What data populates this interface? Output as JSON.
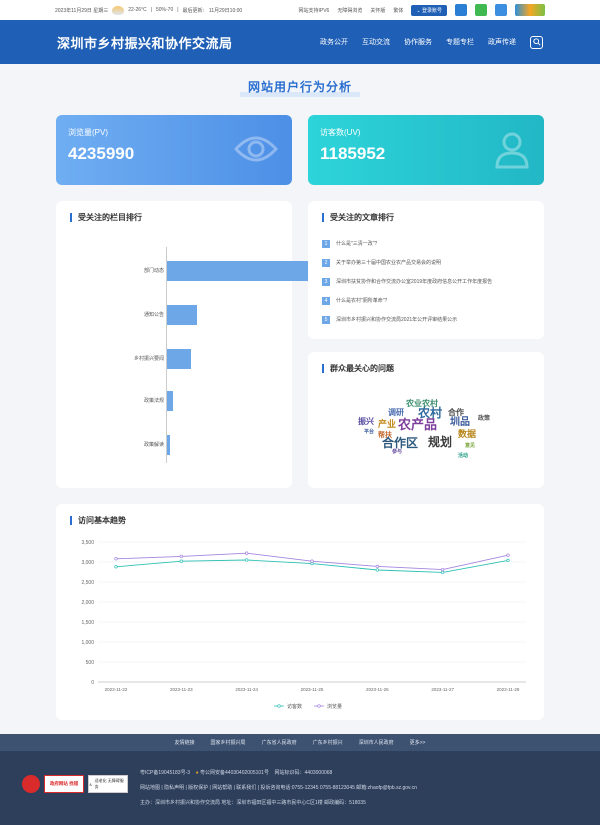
{
  "topbar": {
    "date": "2023年11月29日 星期三",
    "temp": "22-26°C",
    "humidity": "50%-70",
    "updated": "最后更新： 11月29日10:00",
    "links": [
      "网站支持IPV6",
      "无障碍浏览",
      "关怀版",
      "繁体"
    ],
    "login_label": "登录账号",
    "apps": [
      {
        "name": "mobile-icon",
        "color": "#2a7fd4"
      },
      {
        "name": "wechat-icon",
        "color": "#3fb950"
      },
      {
        "name": "weibo-icon",
        "color": "#3c8ee0"
      },
      {
        "name": "miniapp-icon",
        "color": "#2c9fd6"
      }
    ]
  },
  "header": {
    "site_title": "深圳市乡村振兴和协作交流局",
    "nav": [
      "政务公开",
      "互动交流",
      "协作服务",
      "专题专栏",
      "政声传递"
    ]
  },
  "page_title": "网站用户行为分析",
  "stats": {
    "pv": {
      "label": "浏览量(PV)",
      "value": "4235990"
    },
    "uv": {
      "label": "访客数(UV)",
      "value": "1185952"
    }
  },
  "column_rank": {
    "title": "受关注的栏目排行",
    "items": [
      {
        "label": "部门动态",
        "value": 100
      },
      {
        "label": "通知公告",
        "value": 20
      },
      {
        "label": "乡村振兴要闻",
        "value": 16
      },
      {
        "label": "政策法规",
        "value": 4
      },
      {
        "label": "政策解读",
        "value": 2
      }
    ]
  },
  "article_rank": {
    "title": "受关注的文章排行",
    "items": [
      {
        "num": "1",
        "text": "什么是\"三清一改\"?"
      },
      {
        "num": "2",
        "text": "关于举办第三十届中国农业农产品交易会的说明"
      },
      {
        "num": "3",
        "text": "深圳市扶贫协作和合作交流办公室2019年度政府信息公开工作年度报告"
      },
      {
        "num": "4",
        "text": "什么是农村\"厕所革命\"?"
      },
      {
        "num": "5",
        "text": "深圳市乡村振兴和协作交流局2021年公开评审结果公示"
      }
    ]
  },
  "word_cloud": {
    "title": "群众最关心的问题",
    "words": [
      {
        "text": "农业农村",
        "color": "#3b8d6e",
        "size": 8
      },
      {
        "text": "调研",
        "color": "#4d6fb0",
        "size": 8
      },
      {
        "text": "农村",
        "color": "#2f6a9e",
        "size": 12
      },
      {
        "text": "合作",
        "color": "#4a4a4a",
        "size": 8
      },
      {
        "text": "振兴",
        "color": "#5b4fa3",
        "size": 8
      },
      {
        "text": "产业",
        "color": "#c28a1e",
        "size": 9
      },
      {
        "text": "农产品",
        "color": "#7e3f9c",
        "size": 13
      },
      {
        "text": "圳品",
        "color": "#3a5a9b",
        "size": 10
      },
      {
        "text": "政策",
        "color": "#555555",
        "size": 6
      },
      {
        "text": "平台",
        "color": "#3a5a9b",
        "size": 5
      },
      {
        "text": "帮扶",
        "color": "#c2662a",
        "size": 7
      },
      {
        "text": "数据",
        "color": "#b8861a",
        "size": 9
      },
      {
        "text": "合作区",
        "color": "#2e5a7e",
        "size": 12
      },
      {
        "text": "规划",
        "color": "#3b3b3b",
        "size": 12
      },
      {
        "text": "意见",
        "color": "#7aa43a",
        "size": 5
      },
      {
        "text": "参与",
        "color": "#6a4fa0",
        "size": 5
      },
      {
        "text": "活动",
        "color": "#2aa08a",
        "size": 5
      }
    ]
  },
  "trend": {
    "title": "访问基本趋势"
  },
  "chart_data": {
    "type": "line",
    "title": "访问基本趋势",
    "categories": [
      "2023-11-22",
      "2023-11-23",
      "2023-11-24",
      "2023-11-25",
      "2023-11-26",
      "2023-11-27",
      "2023-11-28"
    ],
    "ylim": [
      0,
      3500
    ],
    "yticks": [
      "0",
      "500",
      "1,000",
      "1,500",
      "2,000",
      "2,500",
      "3,000",
      "3,500"
    ],
    "series": [
      {
        "name": "访客数",
        "color": "#2ec1b6",
        "values": [
          2880,
          3020,
          3050,
          2960,
          2800,
          2740,
          3040
        ]
      },
      {
        "name": "浏览量",
        "color": "#a485e0",
        "values": [
          3080,
          3140,
          3220,
          3020,
          2890,
          2810,
          3170
        ]
      }
    ]
  },
  "footer_links": [
    "友情链接",
    "国家乡村振兴局",
    "广东省人民政府",
    "广东乡村振兴",
    "深圳市人民政府",
    "更多>>"
  ],
  "footer": {
    "icp": "粤ICP备19045183号-3",
    "police": "粤公网安备44030402005101号",
    "site_code": "网站标识码：4403000068",
    "nav_line": "网站地图 | 隐私声明 | 版权保护 | 网站帮助 | 联系我们 | 投诉咨询电话:0755-12345 0755-88123045  邮箱:zhaofp@fpb.sz.gov.cn",
    "org_line": "主办：深圳市乡村振兴和协作交流局    地址：深圳市福田区福中三路市民中心C区1楼    邮政编码：518035",
    "badge_gov": "政府网站 找错",
    "badge_access": "适老化 无障碍服务"
  }
}
